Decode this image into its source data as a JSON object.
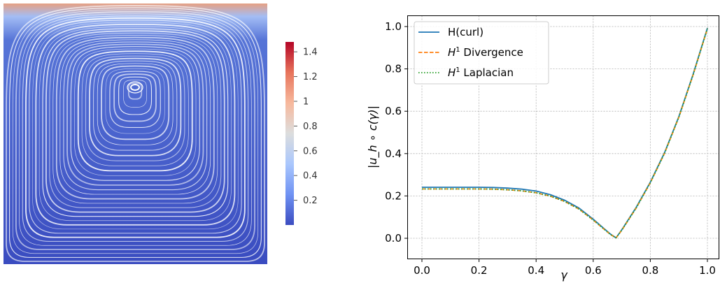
{
  "colorbar": {
    "ticks": [
      "1.4",
      "1.2",
      "1",
      "0.8",
      "0.6",
      "0.4",
      "0.2"
    ],
    "tick_values": [
      1.4,
      1.2,
      1.0,
      0.8,
      0.6,
      0.4,
      0.2
    ],
    "range": [
      0.0,
      1.48
    ],
    "colors": [
      "#3b4cc0",
      "#6f92f3",
      "#aac7fd",
      "#dcdddd",
      "#f7b89c",
      "#e7745b",
      "#b40426"
    ]
  },
  "streamplot": {
    "background_bottom": "#3a4cc0",
    "background_top": "#e6a083",
    "line_color": "#ffffff"
  },
  "chart_data": {
    "type": "line",
    "xlabel": "γ",
    "ylabel": "|u_h ∘ c(γ)|",
    "xlim": [
      0.0,
      1.0
    ],
    "ylim": [
      0.0,
      1.0
    ],
    "xticks": [
      "0.0",
      "0.2",
      "0.4",
      "0.6",
      "0.8",
      "1.0"
    ],
    "yticks": [
      "0.0",
      "0.2",
      "0.4",
      "0.6",
      "0.8",
      "1.0"
    ],
    "xtick_values": [
      0.0,
      0.2,
      0.4,
      0.6,
      0.8,
      1.0
    ],
    "ytick_values": [
      0.0,
      0.2,
      0.4,
      0.6,
      0.8,
      1.0
    ],
    "grid": true,
    "legend_position": "top-left",
    "series": [
      {
        "name": "H(curl)",
        "style": "solid",
        "color": "#1f77b4",
        "x": [
          0.0,
          0.05,
          0.1,
          0.15,
          0.2,
          0.25,
          0.3,
          0.35,
          0.4,
          0.45,
          0.5,
          0.55,
          0.6,
          0.63,
          0.66,
          0.68,
          0.7,
          0.75,
          0.8,
          0.85,
          0.9,
          0.95,
          1.0
        ],
        "y": [
          0.241,
          0.241,
          0.241,
          0.241,
          0.241,
          0.24,
          0.237,
          0.232,
          0.223,
          0.206,
          0.18,
          0.143,
          0.09,
          0.055,
          0.02,
          0.002,
          0.04,
          0.145,
          0.265,
          0.405,
          0.575,
          0.775,
          0.993
        ]
      },
      {
        "name": "H^1 Divergence",
        "style": "dashed",
        "color": "#ff7f0e",
        "x": [
          0.0,
          0.05,
          0.1,
          0.15,
          0.2,
          0.25,
          0.3,
          0.35,
          0.4,
          0.45,
          0.5,
          0.55,
          0.6,
          0.63,
          0.66,
          0.68,
          0.7,
          0.75,
          0.8,
          0.85,
          0.9,
          0.95,
          1.0
        ],
        "y": [
          0.233,
          0.233,
          0.233,
          0.233,
          0.233,
          0.232,
          0.229,
          0.224,
          0.215,
          0.199,
          0.174,
          0.138,
          0.086,
          0.052,
          0.018,
          0.002,
          0.038,
          0.142,
          0.262,
          0.402,
          0.572,
          0.772,
          0.99
        ]
      },
      {
        "name": "H^1 Laplacian",
        "style": "dotted",
        "color": "#2ca02c",
        "x": [
          0.0,
          0.05,
          0.1,
          0.15,
          0.2,
          0.25,
          0.3,
          0.35,
          0.4,
          0.45,
          0.5,
          0.55,
          0.6,
          0.63,
          0.66,
          0.68,
          0.7,
          0.75,
          0.8,
          0.85,
          0.9,
          0.95,
          1.0
        ],
        "y": [
          0.233,
          0.233,
          0.233,
          0.233,
          0.233,
          0.232,
          0.229,
          0.224,
          0.215,
          0.199,
          0.174,
          0.138,
          0.086,
          0.052,
          0.018,
          0.002,
          0.038,
          0.142,
          0.262,
          0.402,
          0.572,
          0.772,
          0.99
        ]
      }
    ]
  }
}
